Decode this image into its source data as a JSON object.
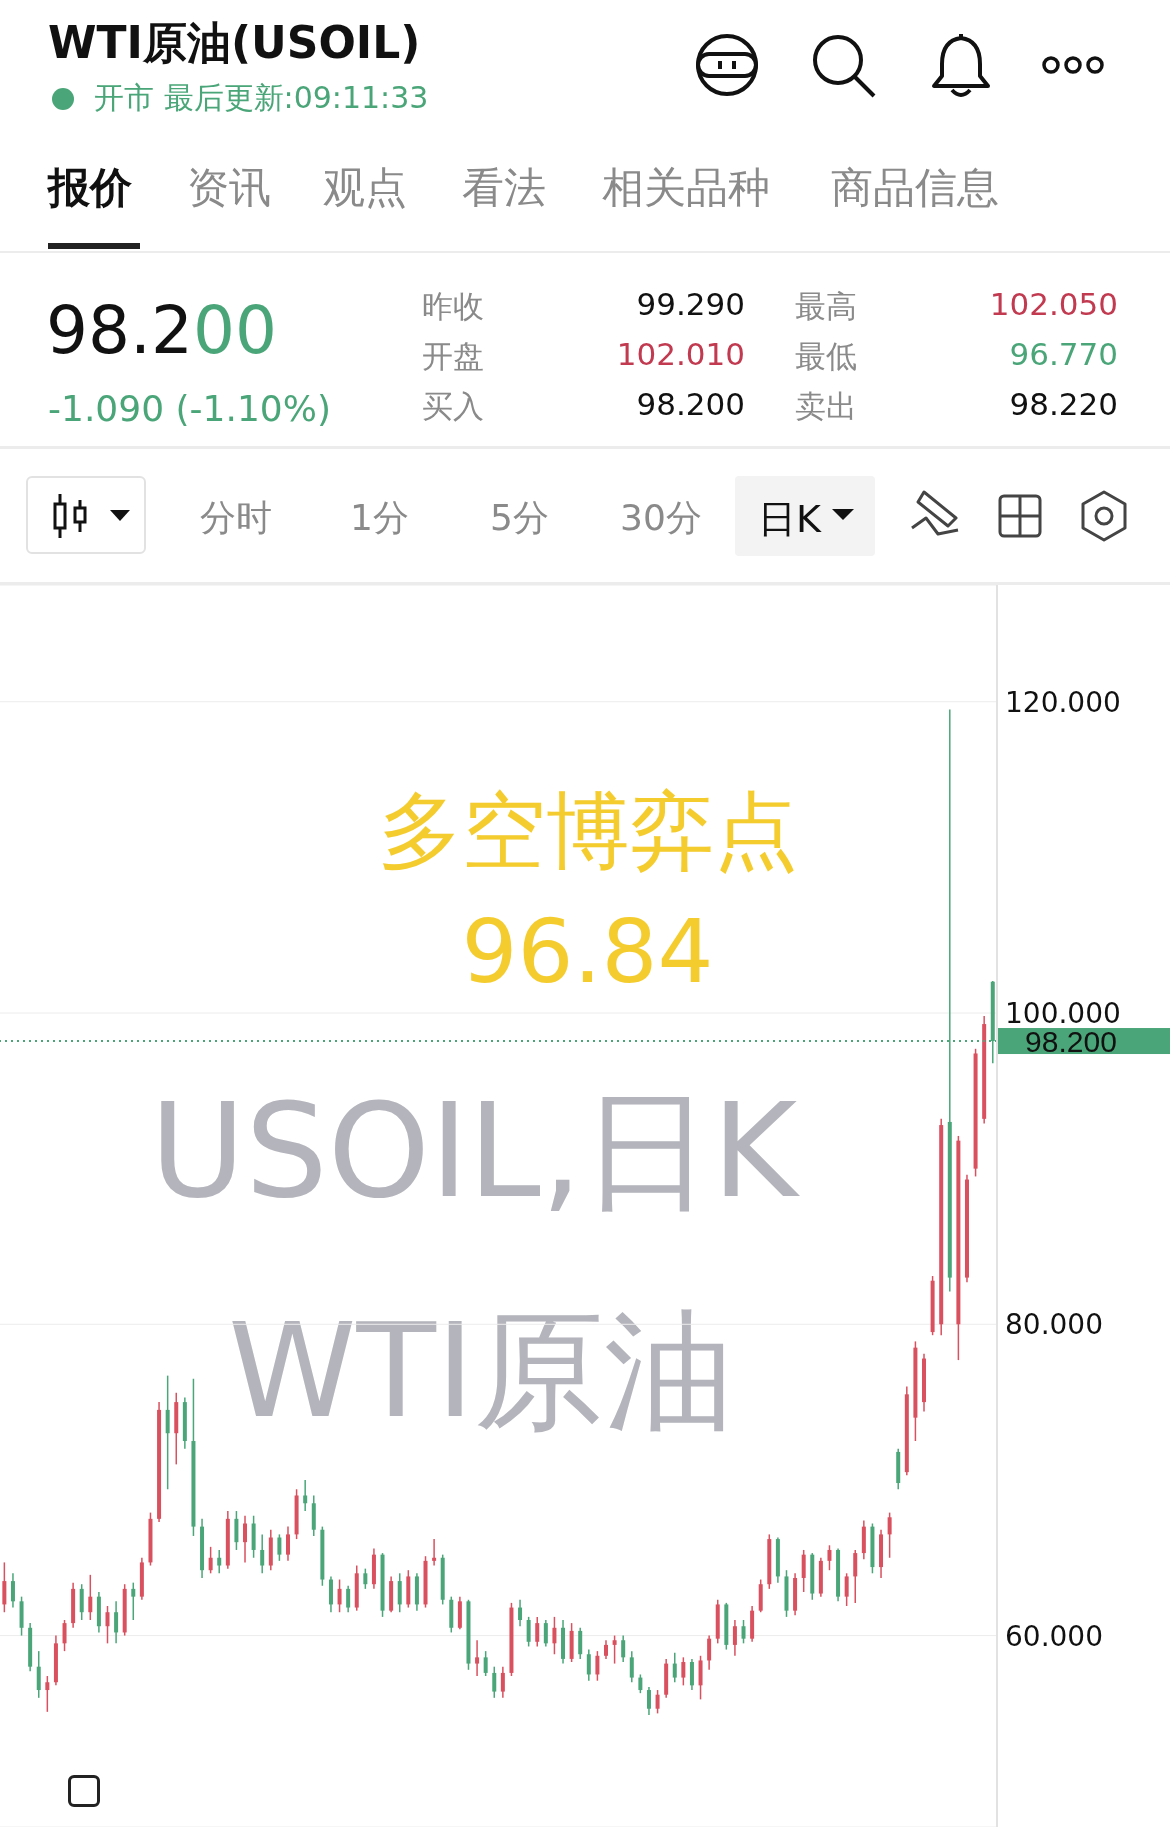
{
  "chart_data": {
    "type": "candlestick",
    "title": "WTI原油(USOIL)",
    "subtitle": "开市 最后更新:09:11:33",
    "annotations": [
      "报价",
      "资讯",
      "观点",
      "看法",
      "相关品种",
      "商品信息",
      "98.200",
      "-1.090 (-1.10%)",
      "昨收",
      "99.290",
      "最高",
      "102.050",
      "开盘",
      "102.010",
      "最低",
      "96.770",
      "买入",
      "98.200",
      "卖出",
      "98.220",
      "分时",
      "1分",
      "5分",
      "30分",
      "日K",
      "多空博弈点",
      "96.84",
      "USOIL,日K",
      "WTI原油"
    ],
    "categories": [
      null,
      null,
      null,
      null,
      null,
      null,
      null,
      null,
      null,
      null,
      null,
      null,
      null,
      null,
      null,
      null,
      null,
      null,
      null,
      null,
      null,
      null,
      null,
      null,
      null,
      null,
      null,
      null,
      null,
      null,
      null,
      null,
      null,
      null,
      null,
      null,
      null,
      null,
      null,
      null,
      null,
      null,
      null,
      null,
      null,
      null,
      null,
      null,
      null,
      null,
      null,
      null,
      null,
      null,
      null,
      null,
      null,
      null,
      null,
      null,
      null,
      null,
      null,
      null,
      null,
      null,
      null,
      null,
      null,
      null,
      null,
      null,
      null,
      null,
      null,
      null,
      null,
      null,
      null,
      null,
      null,
      null,
      null,
      null,
      null,
      null,
      null,
      null,
      null,
      null,
      null,
      null,
      null,
      null,
      null,
      null,
      null,
      null,
      null,
      null,
      null,
      null,
      null,
      null,
      null,
      null,
      null,
      null,
      null,
      null,
      null,
      null,
      null,
      null,
      null,
      null
    ],
    "ohlc": [
      [
        62,
        64.7,
        61.5,
        63.5
      ],
      [
        63.5,
        64,
        61.8,
        62.2
      ],
      [
        62.2,
        62.5,
        60,
        60.5
      ],
      [
        60.5,
        60.8,
        57.7,
        58
      ],
      [
        58,
        59,
        56,
        56.5
      ],
      [
        56.5,
        57.4,
        55.1,
        57
      ],
      [
        57,
        60,
        56.8,
        59.5
      ],
      [
        59.5,
        61,
        59,
        60.8
      ],
      [
        60.8,
        63.4,
        60.5,
        63
      ],
      [
        63,
        63.3,
        61,
        61.5
      ],
      [
        61.5,
        63.9,
        61,
        62.5
      ],
      [
        62.5,
        62.8,
        60.2,
        60.6
      ],
      [
        60.6,
        61.9,
        59.5,
        61.5
      ],
      [
        61.5,
        62.2,
        59.5,
        60.2
      ],
      [
        60.2,
        63.3,
        60,
        63
      ],
      [
        63,
        63.4,
        61,
        62.5
      ],
      [
        62.5,
        65,
        62.3,
        64.7
      ],
      [
        64.7,
        67.9,
        64.5,
        67.5
      ],
      [
        67.5,
        75,
        67.3,
        74.5
      ],
      [
        74.5,
        76.7,
        69.4,
        73
      ],
      [
        73,
        75.6,
        71,
        75
      ],
      [
        75,
        75.3,
        72,
        72.5
      ],
      [
        72.5,
        76.5,
        66.4,
        67
      ],
      [
        67,
        67.5,
        63.7,
        64.2
      ],
      [
        64.2,
        65.7,
        64,
        65
      ],
      [
        65,
        65.5,
        64,
        64.5
      ],
      [
        64.5,
        68,
        64.3,
        67.5
      ],
      [
        67.5,
        68,
        65.5,
        66
      ],
      [
        66,
        67.7,
        64.7,
        67.2
      ],
      [
        67.2,
        67.7,
        65,
        65.5
      ],
      [
        65.5,
        66.5,
        64,
        64.5
      ],
      [
        64.5,
        66.8,
        64.2,
        66.3
      ],
      [
        66.3,
        66.5,
        64.8,
        65.2
      ],
      [
        65.2,
        67,
        64.8,
        66.5
      ],
      [
        66.5,
        69.4,
        66.2,
        69
      ],
      [
        69,
        70,
        68,
        68.5
      ],
      [
        68.5,
        69,
        66.4,
        66.8
      ],
      [
        66.8,
        67,
        63.2,
        63.6
      ],
      [
        63.6,
        63.8,
        61.5,
        62
      ],
      [
        62,
        63.6,
        61.5,
        63
      ],
      [
        63,
        63.2,
        61.5,
        61.8
      ],
      [
        61.8,
        64.5,
        61.6,
        64
      ],
      [
        64,
        64.3,
        63,
        63.3
      ],
      [
        63.3,
        65.6,
        63,
        65.2
      ],
      [
        65.2,
        65.3,
        61.2,
        61.6
      ],
      [
        61.6,
        63.8,
        61.5,
        63.5
      ],
      [
        63.5,
        64,
        61.5,
        62
      ],
      [
        62,
        64.2,
        61.8,
        63.8
      ],
      [
        63.8,
        64,
        61.6,
        62
      ],
      [
        62,
        65.1,
        61.8,
        64.8
      ],
      [
        64.8,
        66.2,
        64.5,
        65
      ],
      [
        65,
        65.2,
        62,
        62.3
      ],
      [
        62.3,
        62.5,
        60.2,
        60.5
      ],
      [
        60.5,
        62.5,
        60.4,
        62.2
      ],
      [
        62.2,
        62.3,
        57.8,
        58.2
      ],
      [
        58.2,
        59.7,
        57.4,
        58.6
      ],
      [
        58.6,
        59,
        57.4,
        57.6
      ],
      [
        57.6,
        58,
        56,
        56.4
      ],
      [
        56.4,
        58,
        56,
        57.6
      ],
      [
        57.6,
        62.1,
        57.4,
        61.8
      ],
      [
        61.8,
        62.3,
        60.6,
        61
      ],
      [
        61,
        61.2,
        59.3,
        59.6
      ],
      [
        59.6,
        61.2,
        59.3,
        60.8
      ],
      [
        60.8,
        61,
        59.3,
        59.5
      ],
      [
        59.5,
        61.2,
        58.8,
        60.5
      ],
      [
        60.5,
        61,
        58.2,
        58.5
      ],
      [
        58.5,
        60.8,
        58.3,
        60.3
      ],
      [
        60.3,
        60.5,
        58.5,
        58.8
      ],
      [
        58.8,
        59.1,
        57.1,
        57.5
      ],
      [
        57.5,
        59,
        57.1,
        58.7
      ],
      [
        58.7,
        59.7,
        58.5,
        59.4
      ],
      [
        59.4,
        60,
        58.2,
        59.7
      ],
      [
        59.7,
        60,
        58.3,
        58.6
      ],
      [
        58.6,
        59,
        57,
        57.3
      ],
      [
        57.3,
        57.5,
        56.3,
        56.5
      ],
      [
        56.5,
        56.7,
        54.9,
        55.3
      ],
      [
        55.3,
        56.5,
        55,
        56.2
      ],
      [
        56.2,
        58.5,
        56,
        58.2
      ],
      [
        58.2,
        58.9,
        57,
        57.3
      ],
      [
        57.3,
        58.6,
        56.8,
        58.3
      ],
      [
        58.3,
        58.5,
        56.5,
        56.8
      ],
      [
        56.8,
        58.7,
        55.9,
        58.4
      ],
      [
        58.4,
        60,
        57.8,
        59.8
      ],
      [
        59.8,
        62.3,
        59.5,
        62
      ],
      [
        62,
        62.1,
        59.1,
        59.4
      ],
      [
        59.4,
        61,
        58.7,
        60.6
      ],
      [
        60.6,
        61,
        59.5,
        59.8
      ],
      [
        59.8,
        61.9,
        59.6,
        61.6
      ],
      [
        61.6,
        63.6,
        61.5,
        63.3
      ],
      [
        63.3,
        66.5,
        63,
        66.2
      ],
      [
        66.2,
        66.3,
        63.4,
        63.8
      ],
      [
        63.8,
        64.2,
        61.2,
        61.6
      ],
      [
        61.6,
        64,
        61.3,
        63.7
      ],
      [
        63.7,
        65.5,
        62.8,
        65.2
      ],
      [
        65.2,
        65.3,
        62.3,
        62.7
      ],
      [
        62.7,
        65,
        62.5,
        64.8
      ],
      [
        64.8,
        65.8,
        64.2,
        65.5
      ],
      [
        65.5,
        65.6,
        62.2,
        62.5
      ],
      [
        62.5,
        64,
        61.9,
        63.8
      ],
      [
        63.8,
        65.5,
        62.1,
        65.3
      ],
      [
        65.3,
        67.4,
        64.9,
        67
      ],
      [
        67,
        67.2,
        64,
        64.4
      ],
      [
        64.4,
        66.8,
        63.7,
        66.5
      ],
      [
        66.5,
        67.9,
        65,
        67.6
      ],
      [
        71.8,
        72,
        69.4,
        69.8
      ],
      [
        70.5,
        76,
        70.3,
        75.5
      ],
      [
        74,
        78.9,
        72.5,
        78.5
      ],
      [
        75,
        78.1,
        74.4,
        77.8
      ],
      [
        79.5,
        83.1,
        79.3,
        82.8
      ],
      [
        80,
        93.2,
        79.3,
        92.8
      ],
      [
        93,
        119.5,
        82.1,
        83
      ],
      [
        80,
        92.1,
        77.7,
        91.8
      ],
      [
        83,
        89.6,
        82.7,
        89.3
      ],
      [
        90,
        97.7,
        89.5,
        97.4
      ],
      [
        93.2,
        99.8,
        92.9,
        99.29
      ],
      [
        102.01,
        102.05,
        96.77,
        98.2
      ]
    ],
    "colors": [
      "#d9505f",
      "#4aa678",
      "#4aa678",
      "#4aa678",
      "#4aa678",
      "#d9505f",
      "#d9505f",
      "#d9505f",
      "#d9505f",
      "#4aa678",
      "#d9505f",
      "#4aa678",
      "#d9505f",
      "#4aa678",
      "#d9505f",
      "#4aa678",
      "#d9505f",
      "#d9505f",
      "#d9505f",
      "#4aa678",
      "#d9505f",
      "#4aa678",
      "#4aa678",
      "#4aa678",
      "#d9505f",
      "#4aa678",
      "#d9505f",
      "#4aa678",
      "#d9505f",
      "#4aa678",
      "#4aa678",
      "#d9505f",
      "#4aa678",
      "#d9505f",
      "#d9505f",
      "#4aa678",
      "#4aa678",
      "#4aa678",
      "#4aa678",
      "#d9505f",
      "#4aa678",
      "#d9505f",
      "#4aa678",
      "#d9505f",
      "#4aa678",
      "#d9505f",
      "#4aa678",
      "#d9505f",
      "#4aa678",
      "#d9505f",
      "#d9505f",
      "#4aa678",
      "#4aa678",
      "#d9505f",
      "#4aa678",
      "#d9505f",
      "#4aa678",
      "#4aa678",
      "#d9505f",
      "#d9505f",
      "#4aa678",
      "#4aa678",
      "#d9505f",
      "#4aa678",
      "#d9505f",
      "#4aa678",
      "#d9505f",
      "#4aa678",
      "#4aa678",
      "#d9505f",
      "#d9505f",
      "#d9505f",
      "#4aa678",
      "#4aa678",
      "#4aa678",
      "#4aa678",
      "#d9505f",
      "#d9505f",
      "#4aa678",
      "#d9505f",
      "#4aa678",
      "#d9505f",
      "#d9505f",
      "#d9505f",
      "#4aa678",
      "#d9505f",
      "#4aa678",
      "#d9505f",
      "#d9505f",
      "#d9505f",
      "#4aa678",
      "#4aa678",
      "#d9505f",
      "#d9505f",
      "#4aa678",
      "#d9505f",
      "#d9505f",
      "#4aa678",
      "#d9505f",
      "#d9505f",
      "#d9505f",
      "#4aa678",
      "#d9505f",
      "#d9505f",
      "#4aa678",
      "#d9505f",
      "#d9505f",
      "#d9505f",
      "#d9505f",
      "#d9505f",
      "#4aa678",
      "#d9505f",
      "#d9505f",
      "#d9505f",
      "#d9505f",
      "#4aa678"
    ],
    "ylim": [
      47.7,
      127.5
    ],
    "yticks": [
      {
        "value": 60,
        "label": "60.000"
      },
      {
        "value": 80,
        "label": "80.000"
      },
      {
        "value": 100,
        "label": "100.000"
      },
      {
        "value": 120,
        "label": "120.000"
      }
    ],
    "grid": "y",
    "tick_labels": "y",
    "ref_lines": [
      {
        "axis": "y",
        "value": 98.2,
        "label": "98.200",
        "color": "#4aa678",
        "line_style": "dotted"
      }
    ]
  }
}
